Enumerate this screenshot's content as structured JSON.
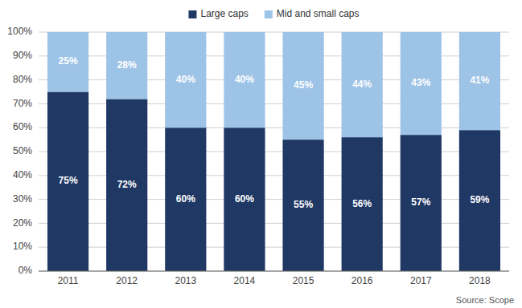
{
  "chart_data": {
    "type": "bar",
    "stacked": true,
    "categories": [
      "2011",
      "2012",
      "2013",
      "2014",
      "2015",
      "2016",
      "2017",
      "2018"
    ],
    "series": [
      {
        "name": "Large caps",
        "color": "#1F3864",
        "values": [
          75,
          72,
          60,
          60,
          55,
          56,
          57,
          59
        ],
        "value_labels": [
          "75%",
          "72%",
          "60%",
          "60%",
          "55%",
          "56%",
          "57%",
          "59%"
        ]
      },
      {
        "name": "Mid and small caps",
        "color": "#9DC3E6",
        "values": [
          25,
          28,
          40,
          40,
          45,
          44,
          43,
          41
        ],
        "value_labels": [
          "25%",
          "28%",
          "40%",
          "40%",
          "45%",
          "44%",
          "43%",
          "41%"
        ]
      }
    ],
    "ylim": [
      0,
      100
    ],
    "yticks": [
      {
        "value": 0,
        "label": "0%"
      },
      {
        "value": 10,
        "label": "10%"
      },
      {
        "value": 20,
        "label": "20%"
      },
      {
        "value": 30,
        "label": "30%"
      },
      {
        "value": 40,
        "label": "40%"
      },
      {
        "value": 50,
        "label": "50%"
      },
      {
        "value": 60,
        "label": "60%"
      },
      {
        "value": 70,
        "label": "70%"
      },
      {
        "value": 80,
        "label": "80%"
      },
      {
        "value": 90,
        "label": "90%"
      },
      {
        "value": 100,
        "label": "100%"
      }
    ],
    "grid": true,
    "legend": "top",
    "data_labels": true,
    "annotations": [
      "Source: Scope"
    ]
  }
}
